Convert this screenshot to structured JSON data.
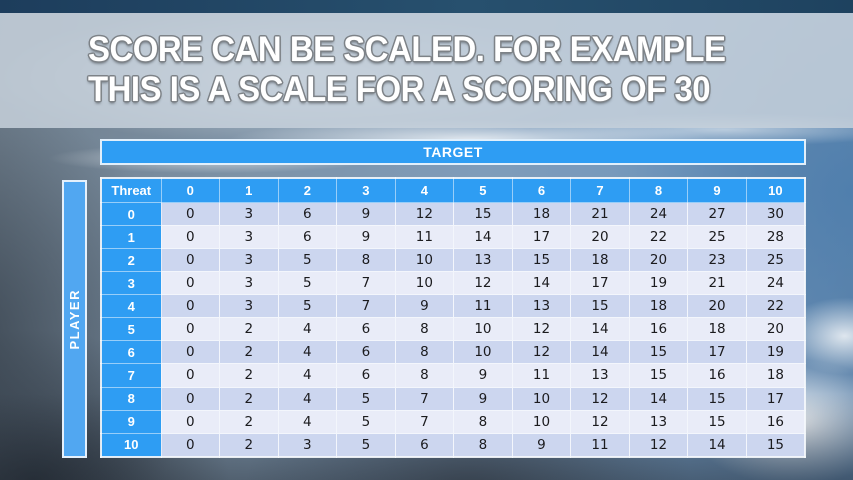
{
  "slide": {
    "title_line1": "SCORE CAN BE SCALED. FOR EXAMPLE",
    "title_line2": "THIS IS A SCALE FOR A SCORING OF 30"
  },
  "colors": {
    "accent_blue": "#2e9df3",
    "player_bar_blue": "#51a7f1",
    "row_even": "#ccd6ef",
    "row_odd": "#e9ecf8",
    "cell_text": "#1b1b1e",
    "top_bar_navy": "#1f4060",
    "title_text": "#ffffff"
  },
  "table": {
    "target_label": "TARGET",
    "player_label": "PLAYER",
    "corner_label": "Threat",
    "column_headers": [
      "0",
      "1",
      "2",
      "3",
      "4",
      "5",
      "6",
      "7",
      "8",
      "9",
      "10"
    ],
    "rows": [
      {
        "label": "0",
        "values": [
          "0",
          "3",
          "6",
          "9",
          "12",
          "15",
          "18",
          "21",
          "24",
          "27",
          "30"
        ]
      },
      {
        "label": "1",
        "values": [
          "0",
          "3",
          "6",
          "9",
          "11",
          "14",
          "17",
          "20",
          "22",
          "25",
          "28"
        ]
      },
      {
        "label": "2",
        "values": [
          "0",
          "3",
          "5",
          "8",
          "10",
          "13",
          "15",
          "18",
          "20",
          "23",
          "25"
        ]
      },
      {
        "label": "3",
        "values": [
          "0",
          "3",
          "5",
          "7",
          "10",
          "12",
          "14",
          "17",
          "19",
          "21",
          "24"
        ]
      },
      {
        "label": "4",
        "values": [
          "0",
          "3",
          "5",
          "7",
          "9",
          "11",
          "13",
          "15",
          "18",
          "20",
          "22"
        ]
      },
      {
        "label": "5",
        "values": [
          "0",
          "2",
          "4",
          "6",
          "8",
          "10",
          "12",
          "14",
          "16",
          "18",
          "20"
        ]
      },
      {
        "label": "6",
        "values": [
          "0",
          "2",
          "4",
          "6",
          "8",
          "10",
          "12",
          "14",
          "15",
          "17",
          "19"
        ]
      },
      {
        "label": "7",
        "values": [
          "0",
          "2",
          "4",
          "6",
          "8",
          "9",
          "11",
          "13",
          "15",
          "16",
          "18"
        ]
      },
      {
        "label": "8",
        "values": [
          "0",
          "2",
          "4",
          "5",
          "7",
          "9",
          "10",
          "12",
          "14",
          "15",
          "17"
        ]
      },
      {
        "label": "9",
        "values": [
          "0",
          "2",
          "4",
          "5",
          "7",
          "8",
          "10",
          "12",
          "13",
          "15",
          "16"
        ]
      },
      {
        "label": "10",
        "values": [
          "0",
          "2",
          "3",
          "5",
          "6",
          "8",
          "9",
          "11",
          "12",
          "14",
          "15"
        ]
      }
    ]
  }
}
